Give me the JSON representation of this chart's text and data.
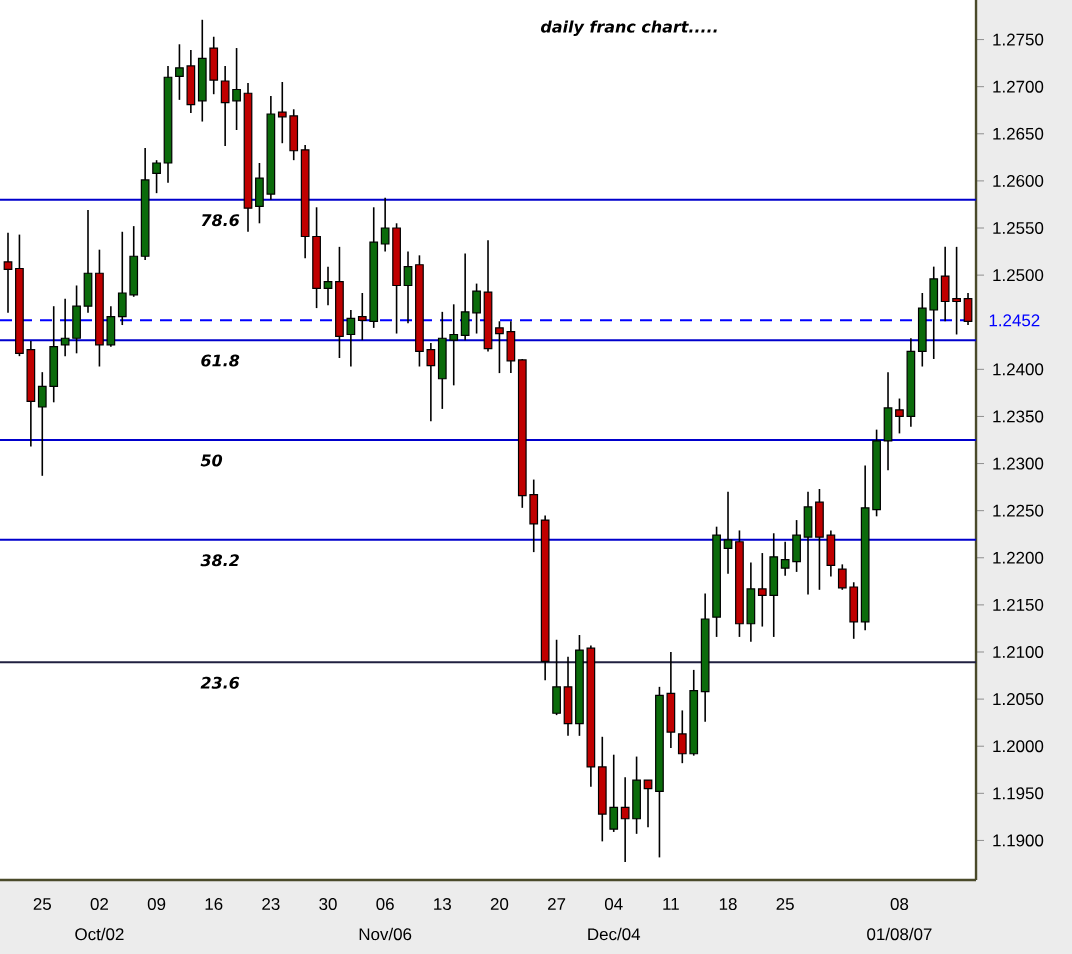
{
  "chart_data": {
    "type": "candlestick",
    "title": "daily franc chart.....",
    "categories": [
      null,
      null,
      null,
      "25",
      null,
      null,
      null,
      null,
      "02",
      null,
      null,
      null,
      null,
      "09",
      null,
      null,
      null,
      null,
      "16",
      null,
      null,
      null,
      null,
      "23",
      null,
      null,
      null,
      null,
      "30",
      null,
      null,
      null,
      null,
      "06",
      null,
      null,
      null,
      null,
      "13",
      null,
      null,
      null,
      null,
      "20",
      null,
      null,
      null,
      null,
      "27",
      null,
      null,
      null,
      null,
      "04",
      null,
      null,
      null,
      null,
      "11",
      null,
      null,
      null,
      null,
      "18",
      null,
      null,
      null,
      null,
      "25",
      null,
      null,
      null,
      null,
      null,
      null,
      null,
      null,
      null,
      "08",
      null,
      null,
      null,
      null,
      null,
      null
    ],
    "ohlc": [
      [
        1.2514,
        1.2545,
        1.246,
        1.2506
      ],
      [
        1.2507,
        1.2543,
        1.2414,
        1.2417
      ],
      [
        1.2421,
        1.243,
        1.2318,
        1.2366
      ],
      [
        1.236,
        1.2397,
        1.2287,
        1.2382
      ],
      [
        1.2382,
        1.2467,
        1.2365,
        1.2424
      ],
      [
        1.2426,
        1.2475,
        1.2414,
        1.2433
      ],
      [
        1.2433,
        1.2489,
        1.2417,
        1.2467
      ],
      [
        1.2467,
        1.2569,
        1.246,
        1.2502
      ],
      [
        1.2502,
        1.2527,
        1.2403,
        1.2426
      ],
      [
        1.2426,
        1.2467,
        1.2424,
        1.2456
      ],
      [
        1.2456,
        1.2546,
        1.2447,
        1.2481
      ],
      [
        1.2479,
        1.2552,
        1.2477,
        1.252
      ],
      [
        1.252,
        1.2635,
        1.2516,
        1.2601
      ],
      [
        1.2608,
        1.2622,
        1.2587,
        1.2619
      ],
      [
        1.2619,
        1.2722,
        1.2598,
        1.271
      ],
      [
        1.2711,
        1.2745,
        1.2686,
        1.272
      ],
      [
        1.2722,
        1.2739,
        1.2672,
        1.2681
      ],
      [
        1.2685,
        1.2771,
        1.2663,
        1.273
      ],
      [
        1.2741,
        1.2753,
        1.2692,
        1.2707
      ],
      [
        1.2706,
        1.2722,
        1.2637,
        1.2683
      ],
      [
        1.2685,
        1.2741,
        1.2654,
        1.2697
      ],
      [
        1.2693,
        1.2704,
        1.2546,
        1.2571
      ],
      [
        1.2573,
        1.2619,
        1.2555,
        1.2603
      ],
      [
        1.2586,
        1.269,
        1.258,
        1.2671
      ],
      [
        1.2673,
        1.2705,
        1.264,
        1.2668
      ],
      [
        1.2669,
        1.2676,
        1.2622,
        1.2632
      ],
      [
        1.2633,
        1.2638,
        1.2518,
        1.2541
      ],
      [
        1.2541,
        1.2572,
        1.2465,
        1.2486
      ],
      [
        1.2486,
        1.2509,
        1.2468,
        1.2493
      ],
      [
        1.2493,
        1.253,
        1.2412,
        1.2435
      ],
      [
        1.2437,
        1.2463,
        1.2403,
        1.2454
      ],
      [
        1.2456,
        1.2481,
        1.2431,
        1.2452
      ],
      [
        1.2451,
        1.2572,
        1.2444,
        1.2535
      ],
      [
        1.2533,
        1.2582,
        1.2525,
        1.255
      ],
      [
        1.255,
        1.2555,
        1.2438,
        1.2489
      ],
      [
        1.2489,
        1.2525,
        1.2449,
        1.2509
      ],
      [
        1.2511,
        1.2521,
        1.2403,
        1.2419
      ],
      [
        1.2421,
        1.2428,
        1.2345,
        1.2404
      ],
      [
        1.239,
        1.2461,
        1.2358,
        1.2433
      ],
      [
        1.2431,
        1.2469,
        1.2383,
        1.2437
      ],
      [
        1.2436,
        1.2523,
        1.2431,
        1.2461
      ],
      [
        1.246,
        1.2491,
        1.2438,
        1.2483
      ],
      [
        1.2482,
        1.2537,
        1.2419,
        1.2422
      ],
      [
        1.2444,
        1.2451,
        1.2396,
        1.2438
      ],
      [
        1.244,
        1.2451,
        1.2396,
        1.2409
      ],
      [
        1.241,
        1.2411,
        1.2253,
        1.2266
      ],
      [
        1.2267,
        1.2283,
        1.2206,
        1.2236
      ],
      [
        1.224,
        1.2245,
        1.207,
        1.209
      ],
      [
        1.2035,
        1.2113,
        1.2033,
        1.2063
      ],
      [
        1.2063,
        1.2095,
        1.2011,
        1.2024
      ],
      [
        1.2024,
        1.2118,
        1.2011,
        1.2102
      ],
      [
        1.2104,
        1.2107,
        1.1957,
        1.1978
      ],
      [
        1.1978,
        1.201,
        1.1899,
        1.1928
      ],
      [
        1.1912,
        1.1991,
        1.1909,
        1.1935
      ],
      [
        1.1935,
        1.1967,
        1.1877,
        1.1923
      ],
      [
        1.1923,
        1.1989,
        1.1907,
        1.1964
      ],
      [
        1.1964,
        1.1964,
        1.1914,
        1.1955
      ],
      [
        1.1952,
        1.2063,
        1.1882,
        1.2054
      ],
      [
        1.2056,
        1.21,
        1.1998,
        1.2015
      ],
      [
        1.2013,
        1.2038,
        1.1982,
        1.1992
      ],
      [
        1.1992,
        1.2081,
        1.199,
        1.2059
      ],
      [
        1.2058,
        1.2162,
        1.2026,
        1.2135
      ],
      [
        1.2137,
        1.2233,
        1.2116,
        1.2224
      ],
      [
        1.221,
        1.227,
        1.2183,
        1.2219
      ],
      [
        1.2217,
        1.2229,
        1.2116,
        1.213
      ],
      [
        1.213,
        1.2195,
        1.2111,
        1.2167
      ],
      [
        1.2167,
        1.2205,
        1.2127,
        1.216
      ],
      [
        1.216,
        1.2226,
        1.2116,
        1.2201
      ],
      [
        1.2189,
        1.2217,
        1.2181,
        1.2198
      ],
      [
        1.2196,
        1.224,
        1.2185,
        1.2224
      ],
      [
        1.2222,
        1.227,
        1.2161,
        1.2254
      ],
      [
        1.2259,
        1.2273,
        1.2166,
        1.2222
      ],
      [
        1.2224,
        1.2229,
        1.218,
        1.2192
      ],
      [
        1.2188,
        1.2193,
        1.2166,
        1.2168
      ],
      [
        1.2169,
        1.2174,
        1.2114,
        1.2132
      ],
      [
        1.2132,
        1.2298,
        1.2123,
        1.2253
      ],
      [
        1.2251,
        1.2336,
        1.2244,
        1.2324
      ],
      [
        1.2324,
        1.2397,
        1.2293,
        1.2359
      ],
      [
        1.2357,
        1.2369,
        1.2332,
        1.235
      ],
      [
        1.235,
        1.2433,
        1.2339,
        1.2419
      ],
      [
        1.2419,
        1.2481,
        1.2403,
        1.2465
      ],
      [
        1.2463,
        1.2509,
        1.2411,
        1.2496
      ],
      [
        1.2499,
        1.253,
        1.2451,
        1.2472
      ],
      [
        1.2475,
        1.253,
        1.2437,
        1.2472
      ],
      [
        1.2475,
        1.2481,
        1.2447,
        1.2451
      ]
    ],
    "ylim": [
      1.1858,
      1.2792
    ],
    "yticks": [
      {
        "value": 1.19,
        "label": "1.1900"
      },
      {
        "value": 1.195,
        "label": "1.1950"
      },
      {
        "value": 1.2,
        "label": "1.2000"
      },
      {
        "value": 1.205,
        "label": "1.2050"
      },
      {
        "value": 1.21,
        "label": "1.2100"
      },
      {
        "value": 1.215,
        "label": "1.2150"
      },
      {
        "value": 1.22,
        "label": "1.2200"
      },
      {
        "value": 1.225,
        "label": "1.2250"
      },
      {
        "value": 1.23,
        "label": "1.2300"
      },
      {
        "value": 1.235,
        "label": "1.2350"
      },
      {
        "value": 1.24,
        "label": "1.2400"
      },
      {
        "value": 1.25,
        "label": "1.2500"
      },
      {
        "value": 1.255,
        "label": "1.2550"
      },
      {
        "value": 1.26,
        "label": "1.2600"
      },
      {
        "value": 1.265,
        "label": "1.2650"
      },
      {
        "value": 1.27,
        "label": "1.2700"
      },
      {
        "value": 1.275,
        "label": "1.2750"
      }
    ],
    "ref_lines": [
      {
        "axis": "y",
        "value": 1.258,
        "color": "#0000cc",
        "line_style": "solid"
      },
      {
        "axis": "y",
        "value": 1.2431,
        "color": "#0000cc",
        "line_style": "solid"
      },
      {
        "axis": "y",
        "value": 1.2325,
        "color": "#0000cc",
        "line_style": "solid"
      },
      {
        "axis": "y",
        "value": 1.2219,
        "color": "#0000cc",
        "line_style": "solid"
      },
      {
        "axis": "y",
        "value": 1.2089,
        "color": "#202040",
        "line_style": "solid"
      },
      {
        "axis": "y",
        "value": 1.2452,
        "label": "1.2452",
        "color": "#0000ff",
        "line_style": "dashed"
      }
    ],
    "annotations": [
      {
        "text": "78.6",
        "y": 1.258
      },
      {
        "text": "61.8",
        "y": 1.2431
      },
      {
        "text": "50",
        "y": 1.2325
      },
      {
        "text": "38.2",
        "y": 1.2219
      },
      {
        "text": "23.6",
        "y": 1.2089
      },
      "Oct/02",
      "Nov/06",
      "Dec/04",
      "01/08/07"
    ]
  }
}
